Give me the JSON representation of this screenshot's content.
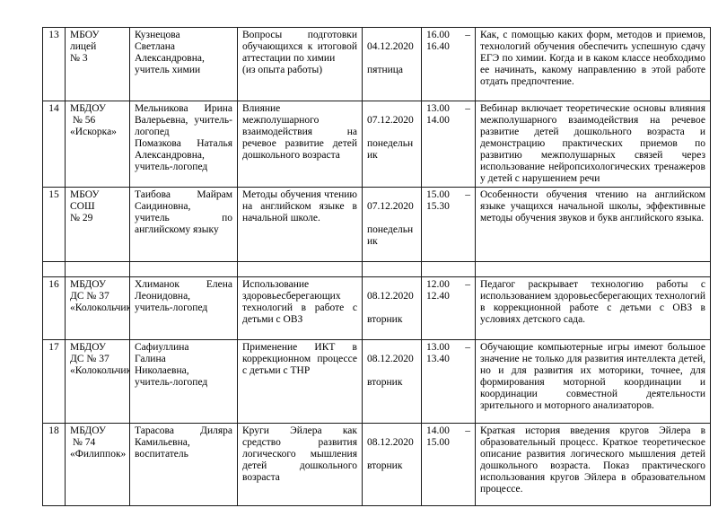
{
  "table": {
    "time_dash": "–",
    "rows": [
      {
        "num": "13",
        "institution": "МБОУ лицей\n№ 3",
        "teacher": "Кузнецова\nСветлана\nАлександровна,\nучитель химии",
        "topic": "Вопросы подготовки обучающихся к итоговой аттестации по химии\n(из опыта работы)",
        "date": "04.12.2020",
        "day": "пятница",
        "time_start": "16.00",
        "time_end": "16.40",
        "description": "Как, с помощью каких форм, методов и приемов, технологий обучения обеспечить успешную сдачу ЕГЭ по химии. Когда и в каком классе необходимо ее начинать, какому направлению в этой работе отдать предпочтение."
      },
      {
        "num": "14",
        "institution": "МБДОУ\n № 56\n«Искорка»",
        "teacher": "Мельникова Ирина Валерьевна, учитель-логопед\nПомазкова Наталья Александровна, учитель-логопед",
        "topic": "Влияние межполушарного взаимодействия на речевое развитие детей дошкольного возраста",
        "date": "07.12.2020",
        "day": "понедельник",
        "time_start": "13.00",
        "time_end": "14.00",
        "description": "Вебинар включает теоретические основы влияния межполушарного взаимодействия на речевое развитие детей дошкольного возраста и демонстрацию практических приемов по развитию межполушарных связей через использование нейропсихологических тренажеров у детей с нарушением речи"
      },
      {
        "num": "15",
        "institution": "МБОУ СОШ\n№ 29",
        "teacher": "Таибова Майрам Саидиновна,\nучитель по английскому языку",
        "topic": "Методы обучения чтению на английском языке в начальной школе.",
        "date": "07.12.2020",
        "day": "понедельник",
        "time_start": "15.00",
        "time_end": "15.30",
        "description": "Особенности обучения чтению на английском языке учащихся начальной школы, эффективные методы обучения звуков и букв английского языка."
      },
      {
        "num": "16",
        "institution": "МБДОУ\nДС № 37\n«Колокольчик»",
        "teacher": "Хлиманок Елена Леонидовна,\nучитель-логопед",
        "topic": "Использование здоровьесберегающих технологий в работе с детьми с ОВЗ",
        "date": "08.12.2020",
        "day": "вторник",
        "time_start": "12.00",
        "time_end": "12.40",
        "description": "Педагог раскрывает технологию работы с использованием здоровьесберегающих технологий в коррекционной работе с детьми с ОВЗ в условиях детского сада."
      },
      {
        "num": "17",
        "institution": "МБДОУ\nДС № 37\n«Колокольчик»",
        "teacher": "Сафиуллина\nГалина\nНиколаевна,\nучитель-логопед",
        "topic": "Применение ИКТ в коррекционном процессе с детьми с ТНР",
        "date": "08.12.2020",
        "day": "вторник",
        "time_start": "13.00",
        "time_end": "13.40",
        "description": "Обучающие компьютерные игры имеют большое значение не только для развития интеллекта детей, но и для развития их моторики, точнее, для формирования моторной координации и координации совместной деятельности зрительного и моторного анализаторов."
      },
      {
        "num": "18",
        "institution": "МБДОУ\n № 74\n«Филиппок»",
        "teacher": "Тарасова Диляра Камильевна,\nвоспитатель",
        "topic": "Круги Эйлера как средство развития логического мышления детей дошкольного возраста",
        "date": "08.12.2020",
        "day": "вторник",
        "time_start": "14.00",
        "time_end": "15.00",
        "description": "Краткая история введения кругов Эйлера в образовательный процесс. Краткое теоретическое описание развития логического мышления детей дошкольного возраста. Показ практического использования кругов Эйлера в образовательном процессе."
      }
    ]
  }
}
